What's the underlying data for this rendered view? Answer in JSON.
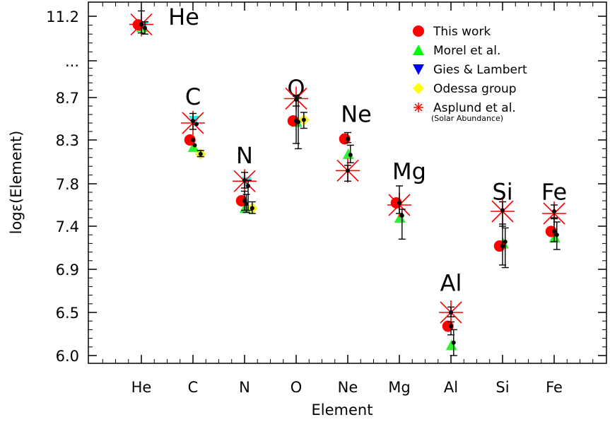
{
  "chart_data": {
    "type": "scatter",
    "xlabel": "Element",
    "ylabel": "logε(Element)",
    "categories": [
      "He",
      "C",
      "N",
      "O",
      "Ne",
      "Mg",
      "Al",
      "Si",
      "Fe"
    ],
    "y_ticks": [
      "11.2",
      "...",
      "8.7",
      "8.3",
      "7.8",
      "7.4",
      "6.9",
      "6.5",
      "6.0"
    ],
    "grid": false,
    "legend_position": "top-right",
    "element_labels": [
      {
        "text": "He",
        "category": "He",
        "y": 11.2
      },
      {
        "text": "C",
        "category": "C",
        "y": 8.75
      },
      {
        "text": "N",
        "category": "N",
        "y": 8.13
      },
      {
        "text": "O",
        "category": "O",
        "y": 9.05
      },
      {
        "text": "Ne",
        "category": "Ne",
        "y": 8.55
      },
      {
        "text": "Mg",
        "category": "Mg",
        "y": 7.95
      },
      {
        "text": "Al",
        "category": "Al",
        "y": 6.78
      },
      {
        "text": "Si",
        "category": "Si",
        "y": 7.73
      },
      {
        "text": "Fe",
        "category": "Fe",
        "y": 7.73
      }
    ],
    "series": [
      {
        "name": "This work",
        "marker": "circle",
        "color": "#ff0000",
        "offset": -0.17,
        "values": [
          10.97,
          8.3,
          7.64,
          8.48,
          8.31,
          7.62,
          6.34,
          7.17,
          7.34
        ],
        "errors": [
          0.15,
          0.0,
          0.0,
          0.0,
          0.05,
          0.0,
          0.0,
          0.0,
          0.0
        ]
      },
      {
        "name": "Morel et al.",
        "marker": "triangle-up",
        "color": "#00ff00",
        "offset": 0.03,
        "values": [
          10.91,
          8.22,
          7.57,
          8.47,
          8.14,
          7.48,
          6.12,
          7.2,
          7.27
        ],
        "errors": [
          0.0,
          0.0,
          0.0,
          0.0,
          0.0,
          0.0,
          0.0,
          0.0,
          0.0
        ]
      },
      {
        "name": "Gies & Lambert",
        "marker": "triangle-down",
        "color": "#0000ff",
        "offset": 0.08,
        "values": [
          10.92,
          8.48,
          7.82,
          null,
          null,
          null,
          null,
          null,
          null
        ],
        "errors": [
          0.0,
          0.0,
          0.0,
          0.0,
          0.0,
          0.0,
          0.0,
          0.0,
          0.0
        ]
      },
      {
        "name": "Odessa group",
        "marker": "diamond",
        "color": "#ffff00",
        "offset": 0.43,
        "values": [
          null,
          8.14,
          7.57,
          8.49,
          null,
          null,
          null,
          null,
          null
        ],
        "errors": [
          null,
          0.03,
          0.05,
          0.06,
          null,
          null,
          null,
          null,
          null
        ]
      },
      {
        "name": "Asplund et al.",
        "subtitle": "(Solar Abundance)",
        "marker": "asterisk",
        "color": "#ff0000",
        "offset": 0.0,
        "values": [
          10.98,
          8.46,
          7.83,
          8.69,
          7.95,
          7.6,
          6.5,
          7.54,
          7.52
        ],
        "errors": [
          0.0,
          0.0,
          0.0,
          0.0,
          0.0,
          0.0,
          0.0,
          0.0,
          0.0
        ]
      }
    ],
    "points": [
      {
        "category": "He",
        "offset": 0.0,
        "y": 10.98,
        "err": [
          11.25,
          10.75
        ]
      },
      {
        "category": "He",
        "offset": 0.2,
        "y": 10.88,
        "err": [
          11.05,
          10.72
        ]
      },
      {
        "category": "C",
        "offset": 0.0,
        "y": 8.48,
        "err": [
          8.55,
          8.4
        ]
      },
      {
        "category": "C",
        "offset": 0.0,
        "y": 8.3,
        "err": null
      },
      {
        "category": "C",
        "offset": 0.1,
        "y": 8.24,
        "err": null
      },
      {
        "category": "C",
        "offset": 0.2,
        "y": 8.45,
        "err": null
      },
      {
        "category": "C",
        "offset": 0.43,
        "y": 8.14,
        "err": [
          8.18,
          8.11
        ]
      },
      {
        "category": "N",
        "offset": 0.0,
        "y": 7.84,
        "err": [
          7.93,
          7.76
        ]
      },
      {
        "category": "N",
        "offset": 0.0,
        "y": 7.64,
        "err": [
          7.73,
          7.55
        ]
      },
      {
        "category": "N",
        "offset": 0.1,
        "y": 7.61,
        "err": [
          7.7,
          7.53
        ]
      },
      {
        "category": "N",
        "offset": 0.2,
        "y": 7.78,
        "err": [
          7.84,
          7.55
        ]
      },
      {
        "category": "N",
        "offset": 0.43,
        "y": 7.57,
        "err": [
          7.63,
          7.52
        ]
      },
      {
        "category": "O",
        "offset": 0.0,
        "y": 8.68,
        "err": [
          8.76,
          8.62
        ]
      },
      {
        "category": "O",
        "offset": 0.0,
        "y": 8.48,
        "err": [
          8.75,
          8.26
        ]
      },
      {
        "category": "O",
        "offset": 0.12,
        "y": 8.47,
        "err": [
          8.7,
          8.2
        ]
      },
      {
        "category": "O",
        "offset": 0.43,
        "y": 8.49,
        "err": [
          8.56,
          8.41
        ]
      },
      {
        "category": "Ne",
        "offset": 0.0,
        "y": 8.31,
        "err": [
          8.37,
          8.27
        ]
      },
      {
        "category": "Ne",
        "offset": 0.0,
        "y": 7.95,
        "err": [
          8.01,
          7.83
        ]
      },
      {
        "category": "Ne",
        "offset": 0.15,
        "y": 8.13,
        "err": [
          8.24,
          8.04
        ]
      },
      {
        "category": "Mg",
        "offset": 0.0,
        "y": 7.62,
        "err": [
          7.78,
          7.52
        ]
      },
      {
        "category": "Mg",
        "offset": 0.15,
        "y": 7.5,
        "err": [
          7.56,
          7.25
        ]
      },
      {
        "category": "Al",
        "offset": 0.0,
        "y": 6.5,
        "err": [
          6.55,
          6.45
        ]
      },
      {
        "category": "Al",
        "offset": 0.0,
        "y": 6.34,
        "err": [
          6.39,
          6.24
        ]
      },
      {
        "category": "Al",
        "offset": 0.15,
        "y": 6.15,
        "err": [
          6.3,
          6.0
        ]
      },
      {
        "category": "Si",
        "offset": 0.0,
        "y": 7.55,
        "err": [
          7.63,
          7.4
        ]
      },
      {
        "category": "Si",
        "offset": 0.0,
        "y": 7.17,
        "err": [
          7.42,
          6.95
        ]
      },
      {
        "category": "Si",
        "offset": 0.15,
        "y": 7.22,
        "err": [
          7.38,
          6.92
        ]
      },
      {
        "category": "Fe",
        "offset": 0.0,
        "y": 7.54,
        "err": [
          7.6,
          7.48
        ]
      },
      {
        "category": "Fe",
        "offset": 0.0,
        "y": 7.34,
        "err": [
          7.47,
          7.22
        ]
      },
      {
        "category": "Fe",
        "offset": 0.15,
        "y": 7.3,
        "err": [
          7.44,
          7.13
        ]
      }
    ]
  }
}
